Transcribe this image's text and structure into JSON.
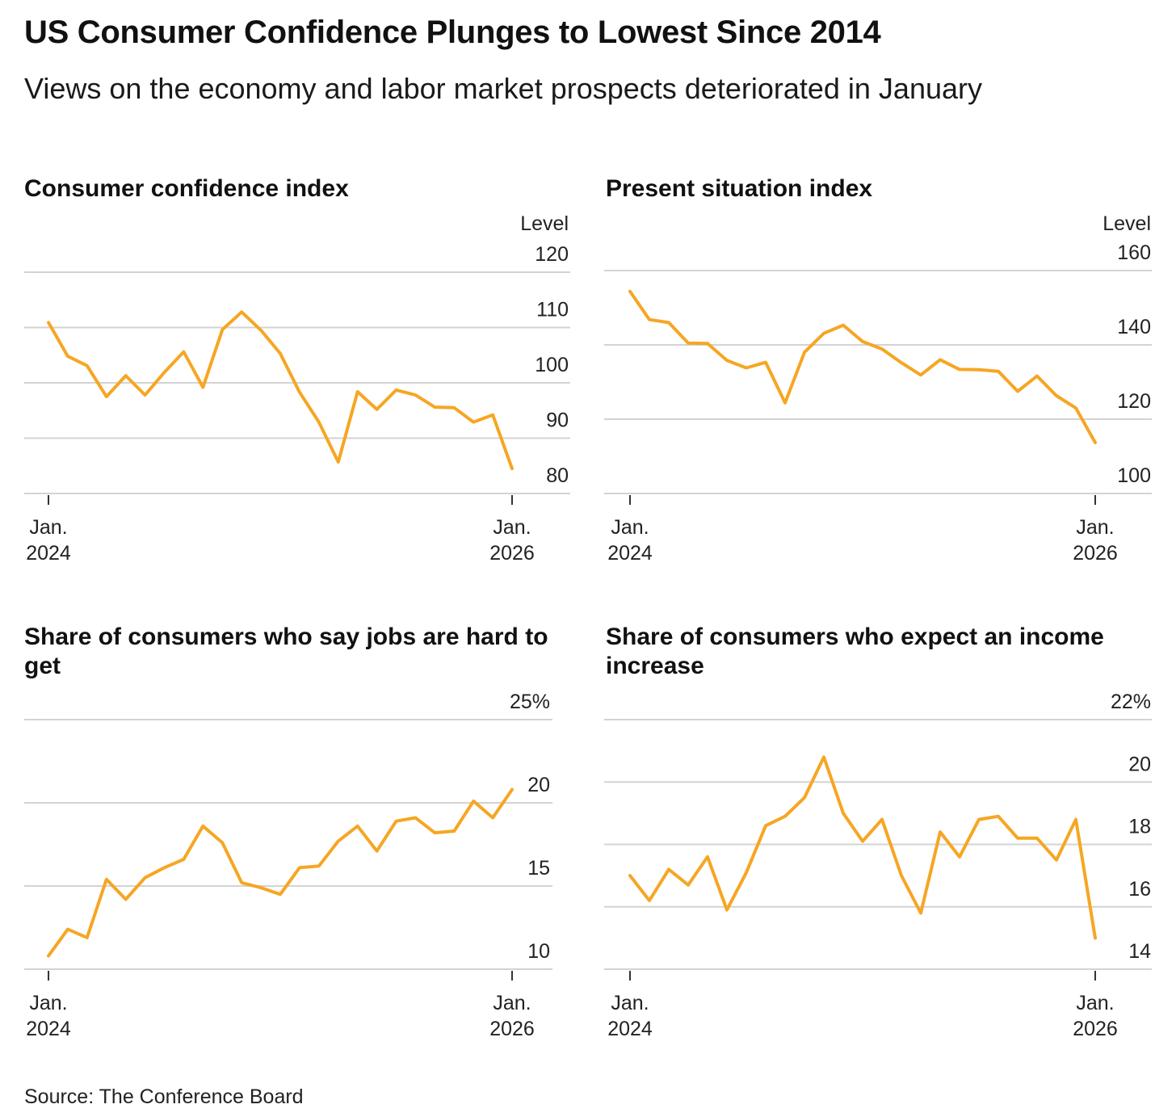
{
  "header": {
    "title": "US Consumer Confidence Plunges to Lowest Since 2014",
    "subtitle": "Views on the economy and labor market prospects deteriorated in January"
  },
  "footer": {
    "source": "Source: The Conference Board"
  },
  "colors": {
    "line": "#F6A623",
    "grid": "#d3d3d3",
    "text": "#111111"
  },
  "chart_data": [
    {
      "type": "line",
      "title": "Consumer confidence index",
      "unit_label": "Level",
      "ylim": [
        80,
        120
      ],
      "yticks": [
        "120",
        "110",
        "100",
        "90",
        "80"
      ],
      "xtick_labels": [
        [
          "Jan.",
          "2024"
        ],
        [
          "Jan.",
          "2026"
        ]
      ],
      "x": [
        "2024-01",
        "2024-02",
        "2024-03",
        "2024-04",
        "2024-05",
        "2024-06",
        "2024-07",
        "2024-08",
        "2024-09",
        "2024-10",
        "2024-11",
        "2024-12",
        "2025-01",
        "2025-02",
        "2025-03",
        "2025-04",
        "2025-05",
        "2025-06",
        "2025-07",
        "2025-08",
        "2025-09",
        "2025-10",
        "2025-11",
        "2025-12",
        "2026-01"
      ],
      "series": [
        {
          "values": [
            110.9,
            104.8,
            103.1,
            97.5,
            101.3,
            97.8,
            101.9,
            105.6,
            99.2,
            109.6,
            112.8,
            109.5,
            105.3,
            98.3,
            92.9,
            85.7,
            98.4,
            95.2,
            98.7,
            97.8,
            95.6,
            95.5,
            92.9,
            94.2,
            84.5
          ]
        }
      ]
    },
    {
      "type": "line",
      "title": "Present situation index",
      "unit_label": "Level",
      "ylim": [
        100,
        160
      ],
      "yticks": [
        "160",
        "140",
        "120",
        "100"
      ],
      "xtick_labels": [
        [
          "Jan.",
          "2024"
        ],
        [
          "Jan.",
          "2026"
        ]
      ],
      "x": [
        "2024-01",
        "2024-02",
        "2024-03",
        "2024-04",
        "2024-05",
        "2024-06",
        "2024-07",
        "2024-08",
        "2024-09",
        "2024-10",
        "2024-11",
        "2024-12",
        "2025-01",
        "2025-02",
        "2025-03",
        "2025-04",
        "2025-05",
        "2025-06",
        "2025-07",
        "2025-08",
        "2025-09",
        "2025-10",
        "2025-11",
        "2025-12",
        "2026-01"
      ],
      "series": [
        {
          "values": [
            154.4,
            146.8,
            146.0,
            140.5,
            140.4,
            135.8,
            133.8,
            135.3,
            124.4,
            138.0,
            143.1,
            145.3,
            140.9,
            138.9,
            135.2,
            131.9,
            136.0,
            133.4,
            133.3,
            132.9,
            127.5,
            131.6,
            126.3,
            123.0,
            113.7
          ]
        }
      ]
    },
    {
      "type": "line",
      "title": "Share of consumers who say jobs are hard to get",
      "unit_label": "",
      "ylim": [
        10,
        25
      ],
      "yticks": [
        "25%",
        "20",
        "15",
        "10"
      ],
      "xtick_labels": [
        [
          "Jan.",
          "2024"
        ],
        [
          "Jan.",
          "2026"
        ]
      ],
      "x": [
        "2024-01",
        "2024-02",
        "2024-03",
        "2024-04",
        "2024-05",
        "2024-06",
        "2024-07",
        "2024-08",
        "2024-09",
        "2024-10",
        "2024-11",
        "2024-12",
        "2025-01",
        "2025-02",
        "2025-03",
        "2025-04",
        "2025-05",
        "2025-06",
        "2025-07",
        "2025-08",
        "2025-09",
        "2025-10",
        "2025-11",
        "2025-12",
        "2026-01"
      ],
      "series": [
        {
          "values": [
            10.8,
            12.4,
            11.9,
            15.4,
            14.2,
            15.5,
            16.1,
            16.6,
            18.6,
            17.6,
            15.2,
            14.9,
            14.5,
            16.1,
            16.2,
            17.7,
            18.6,
            17.1,
            18.9,
            19.1,
            18.2,
            18.3,
            20.1,
            19.1,
            20.8
          ]
        }
      ]
    },
    {
      "type": "line",
      "title": "Share of consumers who expect an income increase",
      "unit_label": "",
      "ylim": [
        14,
        22
      ],
      "yticks": [
        "22%",
        "20",
        "18",
        "16",
        "14"
      ],
      "xtick_labels": [
        [
          "Jan.",
          "2024"
        ],
        [
          "Jan.",
          "2026"
        ]
      ],
      "x": [
        "2024-01",
        "2024-02",
        "2024-03",
        "2024-04",
        "2024-05",
        "2024-06",
        "2024-07",
        "2024-08",
        "2024-09",
        "2024-10",
        "2024-11",
        "2024-12",
        "2025-01",
        "2025-02",
        "2025-03",
        "2025-04",
        "2025-05",
        "2025-06",
        "2025-07",
        "2025-08",
        "2025-09",
        "2025-10",
        "2025-11",
        "2025-12",
        "2026-01"
      ],
      "series": [
        {
          "values": [
            17.0,
            16.2,
            17.2,
            16.7,
            17.6,
            15.9,
            17.1,
            18.6,
            18.9,
            19.5,
            20.8,
            19.0,
            18.1,
            18.8,
            17.0,
            15.8,
            18.4,
            17.6,
            18.8,
            18.9,
            18.2,
            18.2,
            17.5,
            18.8,
            15.0
          ]
        }
      ]
    }
  ]
}
